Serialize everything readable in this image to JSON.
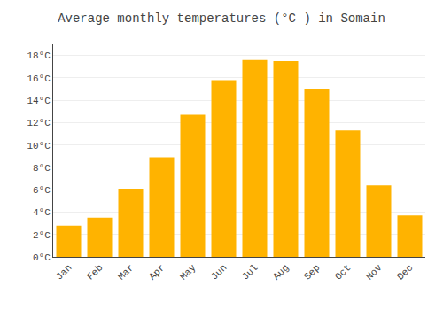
{
  "chart_data": {
    "type": "bar",
    "title": "Average monthly temperatures (°C ) in Somain",
    "categories": [
      "Jan",
      "Feb",
      "Mar",
      "Apr",
      "May",
      "Jun",
      "Jul",
      "Aug",
      "Sep",
      "Oct",
      "Nov",
      "Dec"
    ],
    "values": [
      2.8,
      3.5,
      6.1,
      8.9,
      12.7,
      15.8,
      17.6,
      17.5,
      15.0,
      11.3,
      6.4,
      3.7
    ],
    "color": "#FFB300",
    "ylim": [
      0,
      19
    ],
    "yticks": [
      {
        "value": 0,
        "label": "0°C"
      },
      {
        "value": 2,
        "label": "2°C"
      },
      {
        "value": 4,
        "label": "4°C"
      },
      {
        "value": 6,
        "label": "6°C"
      },
      {
        "value": 8,
        "label": "8°C"
      },
      {
        "value": 10,
        "label": "10°C"
      },
      {
        "value": 12,
        "label": "12°C"
      },
      {
        "value": 14,
        "label": "14°C"
      },
      {
        "value": 16,
        "label": "16°C"
      },
      {
        "value": 18,
        "label": "18°C"
      }
    ],
    "grid": true
  }
}
